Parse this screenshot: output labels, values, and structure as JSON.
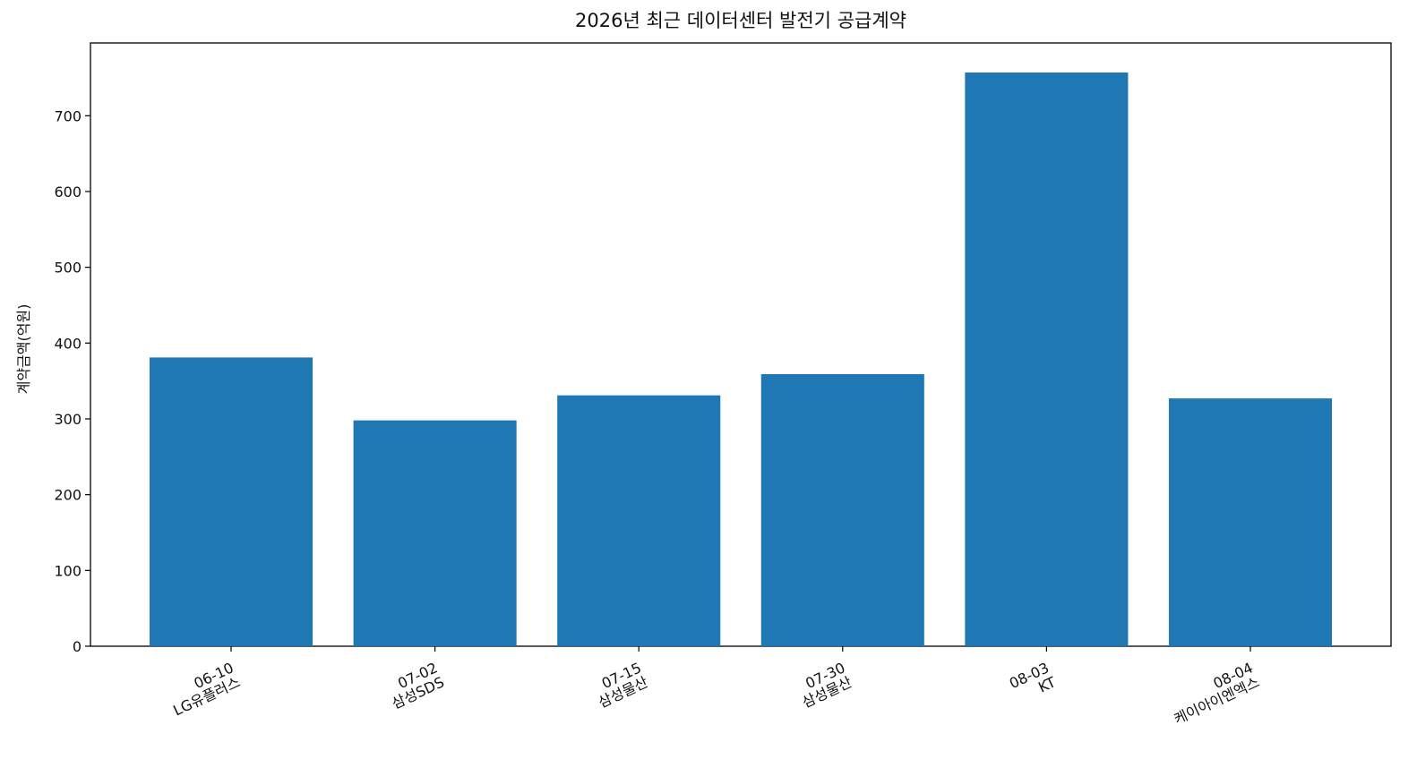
{
  "chart_data": {
    "type": "bar",
    "title": "2026년 최근 데이터센터 발전기 공급계약",
    "y_label": "계약금액(억원)",
    "categories": [
      "06-10\nLG유플러스",
      "07-02\n삼성SDS",
      "07-15\n삼성물산",
      "07-30\n삼성물산",
      "08-03\nKT",
      "08-04\n케이아이엔엑스"
    ],
    "values": [
      381,
      298,
      331,
      359,
      757,
      327
    ],
    "color": "#1f77b4",
    "ylim": [
      0,
      796
    ],
    "yticks": [
      0,
      100,
      200,
      300,
      400,
      500,
      600,
      700
    ],
    "grid": false
  }
}
